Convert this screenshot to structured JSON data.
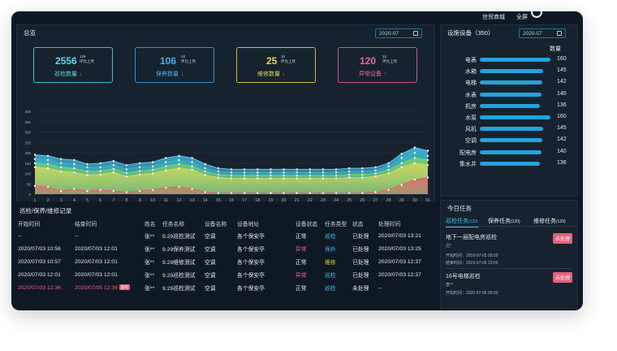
{
  "topbar": {
    "nav": [
      "世贸商城",
      "全屏"
    ]
  },
  "overview": {
    "title": "总览",
    "date": "2020-07",
    "kpis": [
      {
        "value": "2556",
        "sup_value": "126",
        "sup_label": "环比上月",
        "label": "巡检数量",
        "trend": "down",
        "color": "#3ac0c8"
      },
      {
        "value": "106",
        "sup_value": "10",
        "sup_label": "环比上月",
        "label": "保养数量",
        "trend": "down",
        "color": "#3a8fd0"
      },
      {
        "value": "25",
        "sup_value": "10",
        "sup_label": "环比上月",
        "label": "维修数量",
        "trend": "down",
        "color": "#c8c040"
      },
      {
        "value": "120",
        "sup_value": "12",
        "sup_label": "环比上月",
        "label": "异常设备",
        "trend": "up",
        "color": "#d05a7a"
      }
    ]
  },
  "chart_data": {
    "type": "area",
    "x": [
      1,
      2,
      3,
      4,
      5,
      6,
      7,
      8,
      9,
      10,
      11,
      12,
      13,
      14,
      15,
      16,
      17,
      18,
      19,
      20,
      21,
      22,
      23,
      24,
      25,
      26,
      27,
      28,
      29,
      30,
      31
    ],
    "x_ticks": [
      "1",
      "2",
      "3",
      "4",
      "5",
      "6",
      "7",
      "8",
      "9",
      "10",
      "11",
      "12",
      "13",
      "14",
      "15",
      "16",
      "17",
      "18",
      "19",
      "20",
      "21",
      "22",
      "23",
      "24",
      "25",
      "26",
      "27",
      "28",
      "29",
      "30",
      "31"
    ],
    "y_ticks": [
      "0",
      "50",
      "100",
      "150",
      "200",
      "250",
      "300",
      "350",
      "400"
    ],
    "ylim": [
      0,
      400
    ],
    "series": [
      {
        "color": "#49c6f0",
        "values": [
          190,
          185,
          170,
          165,
          145,
          150,
          160,
          140,
          150,
          155,
          175,
          185,
          175,
          145,
          125,
          120,
          120,
          120,
          120,
          120,
          120,
          120,
          120,
          120,
          125,
          125,
          130,
          150,
          195,
          225,
          210
        ]
      },
      {
        "color": "#3ab0c0",
        "values": [
          170,
          165,
          150,
          145,
          130,
          130,
          140,
          120,
          130,
          135,
          155,
          165,
          155,
          125,
          110,
          105,
          105,
          105,
          105,
          105,
          105,
          105,
          105,
          105,
          110,
          110,
          115,
          135,
          175,
          200,
          185
        ]
      },
      {
        "color": "#7ccf6a",
        "values": [
          150,
          145,
          130,
          125,
          110,
          112,
          122,
          102,
          112,
          118,
          135,
          145,
          135,
          110,
          95,
          90,
          90,
          90,
          90,
          90,
          90,
          90,
          90,
          90,
          95,
          95,
          100,
          118,
          150,
          175,
          165
        ]
      },
      {
        "color": "#d4d85a",
        "values": [
          130,
          125,
          110,
          105,
          92,
          95,
          105,
          85,
          95,
          100,
          115,
          125,
          118,
          92,
          80,
          76,
          76,
          76,
          76,
          76,
          76,
          76,
          76,
          76,
          80,
          80,
          86,
          100,
          130,
          150,
          140
        ]
      },
      {
        "color": "#e0606f",
        "values": [
          40,
          35,
          15,
          25,
          15,
          20,
          15,
          10,
          15,
          20,
          30,
          35,
          25,
          10,
          5,
          5,
          5,
          5,
          5,
          5,
          5,
          5,
          5,
          5,
          5,
          5,
          10,
          20,
          45,
          70,
          80
        ]
      }
    ]
  },
  "equipment": {
    "title": "设施设备（350）",
    "date": "2020-07",
    "header_count": "数量",
    "items": [
      {
        "name": "电表",
        "value": 160
      },
      {
        "name": "水箱",
        "value": 145
      },
      {
        "name": "电梯",
        "value": 142
      },
      {
        "name": "水表",
        "value": 140
      },
      {
        "name": "机房",
        "value": 136
      },
      {
        "name": "水泵",
        "value": 160
      },
      {
        "name": "风机",
        "value": 145
      },
      {
        "name": "空调",
        "value": 142
      },
      {
        "name": "配电房",
        "value": 140
      },
      {
        "name": "集水井",
        "value": 136
      }
    ]
  },
  "records": {
    "title": "巡检/保养/维修记录",
    "headers": [
      "开始时间",
      "结束时间",
      "姓名",
      "任务名称",
      "设备名称",
      "设备地址",
      "设备状态",
      "任务类型",
      "状态",
      "处理时间"
    ],
    "rows": [
      {
        "start": "--",
        "end": "--",
        "name": "张**",
        "task": "9.29巡检测试",
        "device": "空调",
        "addr": "各个保安亭",
        "dstatus": "正常",
        "ttype": "巡检",
        "status": "已处理",
        "time": "2020/07/03 13:21",
        "highlight": false,
        "dstatus_color": "#e0e6ec",
        "ttype_color": "#3ac0e8"
      },
      {
        "start": "2020/07/03 10:56",
        "end": "2020/07/03 12:01",
        "name": "张**",
        "task": "9.29保养测试",
        "device": "空调",
        "addr": "各个保安亭",
        "dstatus": "异常",
        "ttype": "保养",
        "status": "已处理",
        "time": "2020/07/03 13:25",
        "highlight": false,
        "dstatus_color": "#e8617a",
        "ttype_color": "#3aa8e8"
      },
      {
        "start": "2020/07/03 10:57",
        "end": "2020/07/03 12:01",
        "name": "张**",
        "task": "9.29维修测试",
        "device": "空调",
        "addr": "各个保安亭",
        "dstatus": "正常",
        "ttype": "维修",
        "status": "已处理",
        "time": "2020/07/03 12:37",
        "highlight": false,
        "dstatus_color": "#e0e6ec",
        "ttype_color": "#d4c84a"
      },
      {
        "start": "2020/07/03 12:01",
        "end": "2020/07/03 12:01",
        "name": "张**",
        "task": "9.29巡检测试",
        "device": "空调",
        "addr": "各个保安亭",
        "dstatus": "异常",
        "ttype": "巡检",
        "status": "已处理",
        "time": "2020/07/03 12:37",
        "highlight": false,
        "dstatus_color": "#e8617a",
        "ttype_color": "#3ac0e8"
      },
      {
        "start": "2020/07/03 12:36",
        "end": "2020/07/05 12:36",
        "name": "张**",
        "task": "9.29巡检测试",
        "device": "空调",
        "addr": "各个保安亭",
        "dstatus": "正常",
        "ttype": "巡检",
        "status": "未处理",
        "time": "--",
        "highlight": true,
        "overdue": "超时",
        "dstatus_color": "#e0e6ec",
        "ttype_color": "#3ac0e8"
      }
    ]
  },
  "today": {
    "title": "今日任务",
    "tabs": [
      {
        "label": "巡检任务",
        "count": "(120)",
        "active": true
      },
      {
        "label": "保养任务",
        "count": "(120)",
        "active": false
      },
      {
        "label": "维修任务",
        "count": "(120)",
        "active": false
      }
    ],
    "tasks": [
      {
        "title": "地下一层配电房巡检",
        "person": "吕*",
        "start": "开始时间：2019-07-05 00:00",
        "end": "结束时间：2019-07-05 23:00",
        "status": "未处理"
      },
      {
        "title": "16号电梯巡检",
        "person": "李**",
        "start": "开始时间：2020-07-05 00:00",
        "status": "未处理"
      }
    ]
  }
}
